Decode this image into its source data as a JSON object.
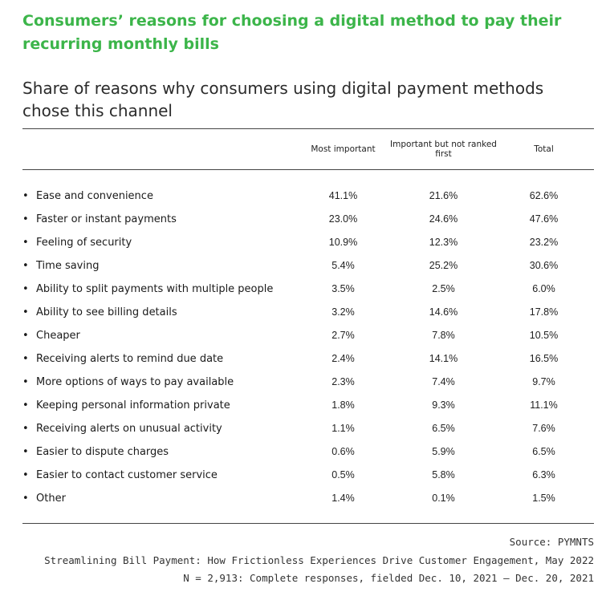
{
  "title": "Consumers’ reasons for choosing a digital method to pay their recurring monthly bills",
  "subtitle": "Share of reasons why consumers using digital payment methods chose this channel",
  "columns": {
    "most_important": "Most important",
    "important_not_first": "Important but not ranked first",
    "total": "Total"
  },
  "rows": [
    {
      "label": "Ease and convenience",
      "most": "41.1%",
      "important": "21.6%",
      "total": "62.6%"
    },
    {
      "label": "Faster or instant payments",
      "most": "23.0%",
      "important": "24.6%",
      "total": "47.6%"
    },
    {
      "label": "Feeling of security",
      "most": "10.9%",
      "important": "12.3%",
      "total": "23.2%"
    },
    {
      "label": "Time saving",
      "most": "5.4%",
      "important": "25.2%",
      "total": "30.6%"
    },
    {
      "label": "Ability to split payments with multiple people",
      "most": "3.5%",
      "important": "2.5%",
      "total": "6.0%"
    },
    {
      "label": "Ability to see billing details",
      "most": "3.2%",
      "important": "14.6%",
      "total": "17.8%"
    },
    {
      "label": "Cheaper",
      "most": "2.7%",
      "important": "7.8%",
      "total": "10.5%"
    },
    {
      "label": "Receiving alerts to remind due date",
      "most": "2.4%",
      "important": "14.1%",
      "total": "16.5%"
    },
    {
      "label": "More options of ways to pay available",
      "most": "2.3%",
      "important": "7.4%",
      "total": "9.7%"
    },
    {
      "label": "Keeping personal information private",
      "most": "1.8%",
      "important": "9.3%",
      "total": "11.1%"
    },
    {
      "label": "Receiving alerts on unusual activity",
      "most": "1.1%",
      "important": "6.5%",
      "total": "7.6%"
    },
    {
      "label": "Easier to dispute charges",
      "most": "0.6%",
      "important": "5.9%",
      "total": "6.5%"
    },
    {
      "label": "Easier to contact customer service",
      "most": "0.5%",
      "important": "5.8%",
      "total": "6.3%"
    },
    {
      "label": "Other",
      "most": "1.4%",
      "important": "0.1%",
      "total": "1.5%"
    }
  ],
  "footer": {
    "source": "Source: PYMNTS",
    "report": "Streamlining Bill Payment: How Frictionless Experiences Drive Customer Engagement, May 2022",
    "sample": "N = 2,913: Complete responses, fielded Dec. 10, 2021 – Dec. 20, 2021"
  },
  "colors": {
    "title": "#3cb54a",
    "text": "#1a1a1a",
    "rule": "#444444"
  }
}
